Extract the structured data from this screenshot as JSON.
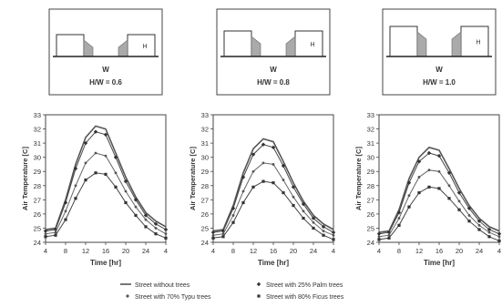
{
  "legend": {
    "entries": [
      {
        "label": "Street without trees",
        "marker": "line"
      },
      {
        "label": "Street with  25% Palm trees",
        "marker": "diamond"
      },
      {
        "label": "Street with 70% Typu trees",
        "marker": "dot"
      },
      {
        "label": "Street with 80% Ficus trees",
        "marker": "square"
      }
    ]
  },
  "chart_data": [
    {
      "type": "line",
      "schematic": {
        "width_label": "W",
        "height_label": "H",
        "ratio_label": "H/W = 0.6"
      },
      "xlabel": "Time [hr]",
      "ylabel": "Air Temperature [C]",
      "xticks": [
        "4",
        "8",
        "12",
        "16",
        "20",
        "24",
        "4"
      ],
      "ylim": [
        24,
        33
      ],
      "yticks": [
        24,
        25,
        26,
        27,
        28,
        29,
        30,
        31,
        32,
        33
      ],
      "x": [
        4,
        6,
        8,
        10,
        12,
        14,
        16,
        18,
        20,
        22,
        24,
        26,
        28
      ],
      "series": [
        {
          "name": "Street without trees",
          "values": [
            24.9,
            25.0,
            27.0,
            29.5,
            31.4,
            32.2,
            32.0,
            30.3,
            28.6,
            27.2,
            26.1,
            25.5,
            25.1
          ]
        },
        {
          "name": "Street with  25% Palm trees",
          "values": [
            24.8,
            24.9,
            26.8,
            29.2,
            31.0,
            31.8,
            31.6,
            30.0,
            28.3,
            27.0,
            25.9,
            25.3,
            24.9
          ]
        },
        {
          "name": "Street with 70% Typu trees",
          "values": [
            24.6,
            24.7,
            26.2,
            28.0,
            29.6,
            30.3,
            30.1,
            28.9,
            27.6,
            26.5,
            25.6,
            25.0,
            24.6
          ]
        },
        {
          "name": "Street with 80% Ficus trees",
          "values": [
            24.4,
            24.5,
            25.6,
            27.1,
            28.4,
            28.9,
            28.8,
            27.9,
            26.8,
            25.9,
            25.1,
            24.6,
            24.3
          ]
        }
      ]
    },
    {
      "type": "line",
      "schematic": {
        "width_label": "W",
        "height_label": "H",
        "ratio_label": "H/W = 0.8"
      },
      "xlabel": "Time [hr]",
      "ylabel": "Air Temperature [C]",
      "xticks": [
        "4",
        "8",
        "12",
        "16",
        "20",
        "24",
        "4"
      ],
      "ylim": [
        24,
        33
      ],
      "yticks": [
        24,
        25,
        26,
        27,
        28,
        29,
        30,
        31,
        32,
        33
      ],
      "x": [
        4,
        6,
        8,
        10,
        12,
        14,
        16,
        18,
        20,
        22,
        24,
        26,
        28
      ],
      "series": [
        {
          "name": "Street without trees",
          "values": [
            24.8,
            24.9,
            26.6,
            28.9,
            30.6,
            31.3,
            31.1,
            29.7,
            28.2,
            26.9,
            25.9,
            25.3,
            24.9
          ]
        },
        {
          "name": "Street with  25% Palm trees",
          "values": [
            24.7,
            24.8,
            26.4,
            28.6,
            30.2,
            30.9,
            30.7,
            29.4,
            27.9,
            26.7,
            25.7,
            25.1,
            24.7
          ]
        },
        {
          "name": "Street with 70% Typu trees",
          "values": [
            24.5,
            24.6,
            25.9,
            27.6,
            29.0,
            29.6,
            29.5,
            28.4,
            27.2,
            26.2,
            25.4,
            24.8,
            24.5
          ]
        },
        {
          "name": "Street with 80% Ficus trees",
          "values": [
            24.3,
            24.4,
            25.4,
            26.8,
            27.9,
            28.3,
            28.2,
            27.5,
            26.6,
            25.7,
            25.0,
            24.5,
            24.2
          ]
        }
      ]
    },
    {
      "type": "line",
      "schematic": {
        "width_label": "W",
        "height_label": "H",
        "ratio_label": "H/W = 1.0"
      },
      "xlabel": "Time [hr]",
      "ylabel": "Air Temperature [C]",
      "xticks": [
        "4",
        "8",
        "12",
        "16",
        "20",
        "24",
        "4"
      ],
      "ylim": [
        24,
        33
      ],
      "yticks": [
        24,
        25,
        26,
        27,
        28,
        29,
        30,
        31,
        32,
        33
      ],
      "x": [
        4,
        6,
        8,
        10,
        12,
        14,
        16,
        18,
        20,
        22,
        24,
        26,
        28
      ],
      "series": [
        {
          "name": "Street without trees",
          "values": [
            24.7,
            24.8,
            26.3,
            28.5,
            30.0,
            30.7,
            30.5,
            29.2,
            27.8,
            26.6,
            25.7,
            25.1,
            24.8
          ]
        },
        {
          "name": "Street with  25% Palm trees",
          "values": [
            24.6,
            24.7,
            26.1,
            28.2,
            29.7,
            30.3,
            30.1,
            28.9,
            27.5,
            26.4,
            25.5,
            24.9,
            24.6
          ]
        },
        {
          "name": "Street with 70% Typu trees",
          "values": [
            24.4,
            24.5,
            25.7,
            27.3,
            28.6,
            29.1,
            29.0,
            28.0,
            26.9,
            25.9,
            25.2,
            24.7,
            24.4
          ]
        },
        {
          "name": "Street with 80% Ficus trees",
          "values": [
            24.2,
            24.3,
            25.2,
            26.5,
            27.5,
            27.9,
            27.8,
            27.1,
            26.3,
            25.5,
            24.9,
            24.4,
            24.1
          ]
        }
      ]
    }
  ]
}
